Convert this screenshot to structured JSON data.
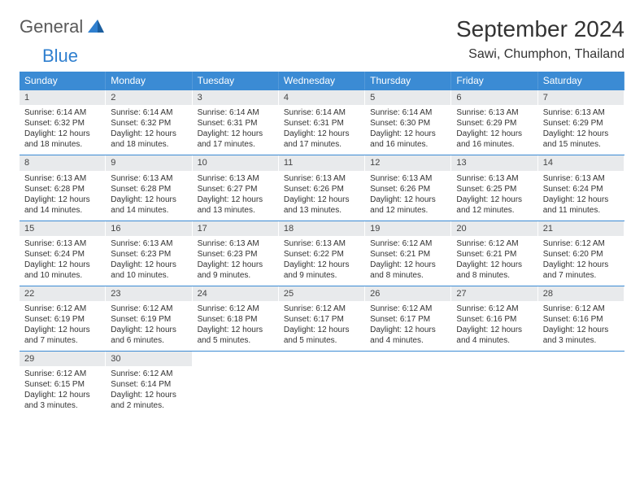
{
  "logo": {
    "word1": "General",
    "word2": "Blue"
  },
  "title": "September 2024",
  "location": "Sawi, Chumphon, Thailand",
  "colors": {
    "header_bg": "#3b8bd4",
    "daynum_bg": "#e8eaec",
    "border": "#3b8bd4",
    "logo_blue": "#2f7fcf",
    "logo_gray": "#5a5a5a"
  },
  "day_names": [
    "Sunday",
    "Monday",
    "Tuesday",
    "Wednesday",
    "Thursday",
    "Friday",
    "Saturday"
  ],
  "days": [
    {
      "n": 1,
      "sr": "6:14 AM",
      "ss": "6:32 PM",
      "dl": "12 hours and 18 minutes."
    },
    {
      "n": 2,
      "sr": "6:14 AM",
      "ss": "6:32 PM",
      "dl": "12 hours and 18 minutes."
    },
    {
      "n": 3,
      "sr": "6:14 AM",
      "ss": "6:31 PM",
      "dl": "12 hours and 17 minutes."
    },
    {
      "n": 4,
      "sr": "6:14 AM",
      "ss": "6:31 PM",
      "dl": "12 hours and 17 minutes."
    },
    {
      "n": 5,
      "sr": "6:14 AM",
      "ss": "6:30 PM",
      "dl": "12 hours and 16 minutes."
    },
    {
      "n": 6,
      "sr": "6:13 AM",
      "ss": "6:29 PM",
      "dl": "12 hours and 16 minutes."
    },
    {
      "n": 7,
      "sr": "6:13 AM",
      "ss": "6:29 PM",
      "dl": "12 hours and 15 minutes."
    },
    {
      "n": 8,
      "sr": "6:13 AM",
      "ss": "6:28 PM",
      "dl": "12 hours and 14 minutes."
    },
    {
      "n": 9,
      "sr": "6:13 AM",
      "ss": "6:28 PM",
      "dl": "12 hours and 14 minutes."
    },
    {
      "n": 10,
      "sr": "6:13 AM",
      "ss": "6:27 PM",
      "dl": "12 hours and 13 minutes."
    },
    {
      "n": 11,
      "sr": "6:13 AM",
      "ss": "6:26 PM",
      "dl": "12 hours and 13 minutes."
    },
    {
      "n": 12,
      "sr": "6:13 AM",
      "ss": "6:26 PM",
      "dl": "12 hours and 12 minutes."
    },
    {
      "n": 13,
      "sr": "6:13 AM",
      "ss": "6:25 PM",
      "dl": "12 hours and 12 minutes."
    },
    {
      "n": 14,
      "sr": "6:13 AM",
      "ss": "6:24 PM",
      "dl": "12 hours and 11 minutes."
    },
    {
      "n": 15,
      "sr": "6:13 AM",
      "ss": "6:24 PM",
      "dl": "12 hours and 10 minutes."
    },
    {
      "n": 16,
      "sr": "6:13 AM",
      "ss": "6:23 PM",
      "dl": "12 hours and 10 minutes."
    },
    {
      "n": 17,
      "sr": "6:13 AM",
      "ss": "6:23 PM",
      "dl": "12 hours and 9 minutes."
    },
    {
      "n": 18,
      "sr": "6:13 AM",
      "ss": "6:22 PM",
      "dl": "12 hours and 9 minutes."
    },
    {
      "n": 19,
      "sr": "6:12 AM",
      "ss": "6:21 PM",
      "dl": "12 hours and 8 minutes."
    },
    {
      "n": 20,
      "sr": "6:12 AM",
      "ss": "6:21 PM",
      "dl": "12 hours and 8 minutes."
    },
    {
      "n": 21,
      "sr": "6:12 AM",
      "ss": "6:20 PM",
      "dl": "12 hours and 7 minutes."
    },
    {
      "n": 22,
      "sr": "6:12 AM",
      "ss": "6:19 PM",
      "dl": "12 hours and 7 minutes."
    },
    {
      "n": 23,
      "sr": "6:12 AM",
      "ss": "6:19 PM",
      "dl": "12 hours and 6 minutes."
    },
    {
      "n": 24,
      "sr": "6:12 AM",
      "ss": "6:18 PM",
      "dl": "12 hours and 5 minutes."
    },
    {
      "n": 25,
      "sr": "6:12 AM",
      "ss": "6:17 PM",
      "dl": "12 hours and 5 minutes."
    },
    {
      "n": 26,
      "sr": "6:12 AM",
      "ss": "6:17 PM",
      "dl": "12 hours and 4 minutes."
    },
    {
      "n": 27,
      "sr": "6:12 AM",
      "ss": "6:16 PM",
      "dl": "12 hours and 4 minutes."
    },
    {
      "n": 28,
      "sr": "6:12 AM",
      "ss": "6:16 PM",
      "dl": "12 hours and 3 minutes."
    },
    {
      "n": 29,
      "sr": "6:12 AM",
      "ss": "6:15 PM",
      "dl": "12 hours and 3 minutes."
    },
    {
      "n": 30,
      "sr": "6:12 AM",
      "ss": "6:14 PM",
      "dl": "12 hours and 2 minutes."
    }
  ],
  "labels": {
    "sunrise": "Sunrise:",
    "sunset": "Sunset:",
    "daylight": "Daylight:"
  },
  "layout": {
    "first_weekday_offset": 0,
    "total_cells": 35
  }
}
